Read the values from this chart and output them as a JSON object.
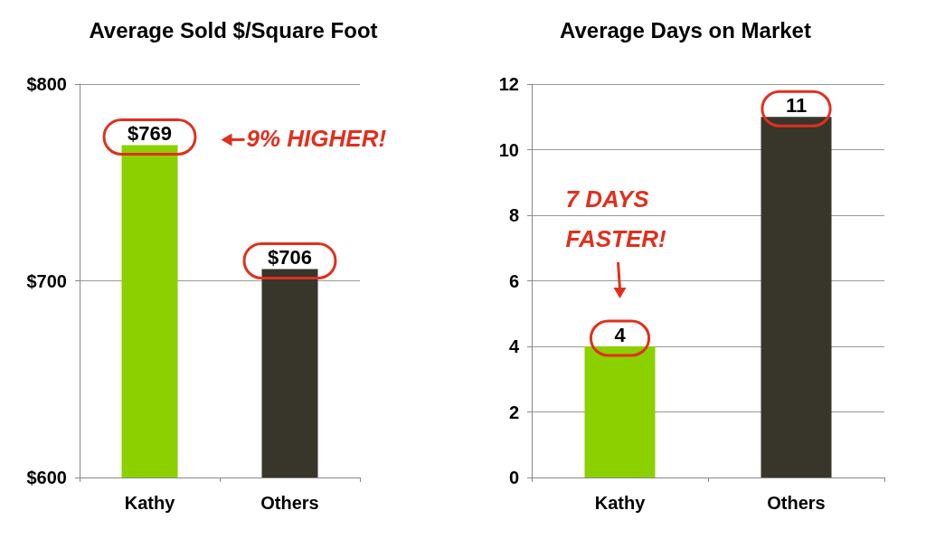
{
  "chart_data": [
    {
      "type": "bar",
      "title": "Average Sold $/Square Foot",
      "categories": [
        "Kathy",
        "Others"
      ],
      "values": [
        769,
        706
      ],
      "colors": [
        "#8cd000",
        "#38352a"
      ],
      "ylim": [
        600,
        800
      ],
      "yticks": [
        {
          "value": 600,
          "label": "$600"
        },
        {
          "value": 700,
          "label": "$700"
        },
        {
          "value": 800,
          "label": "$800"
        }
      ],
      "grid": "y",
      "value_labels": [
        "$769",
        "$706"
      ],
      "annotations": [
        "9% HIGHER!"
      ]
    },
    {
      "type": "bar",
      "title": "Average Days on Market",
      "categories": [
        "Kathy",
        "Others"
      ],
      "values": [
        4,
        11
      ],
      "colors": [
        "#8cd000",
        "#38352a"
      ],
      "ylim": [
        0,
        12
      ],
      "yticks": [
        0,
        2,
        4,
        6,
        8,
        10,
        12
      ],
      "grid": "y",
      "data_labels": true,
      "annotations": [
        "7 DAYS FASTER!"
      ]
    }
  ]
}
